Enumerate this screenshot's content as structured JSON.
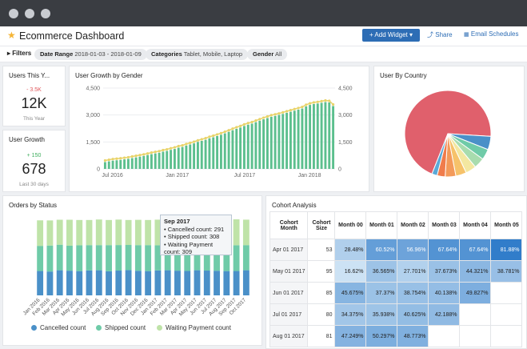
{
  "header": {
    "title": "Ecommerce Dashboard",
    "add_widget": "+ Add Widget ▾",
    "share": "Share",
    "email": "Email Schedules"
  },
  "filters": {
    "label": "Filters",
    "date_key": "Date Range",
    "date_value": "2018-01-03 - 2018-01-09",
    "cat_key": "Categories",
    "cat_value": "Tablet, Mobile, Laptop",
    "gender_key": "Gender",
    "gender_value": "All"
  },
  "kpi_users": {
    "title": "Users This Y...",
    "delta": "- 3.5K",
    "value": "12K",
    "sub": "This Year",
    "delta_color": "#e0575b"
  },
  "kpi_growth": {
    "title": "User Growth",
    "delta": "+ 150",
    "value": "678",
    "sub": "Last 30 days",
    "delta_color": "#3fae5e"
  },
  "growth_panel": {
    "title": "User Growth by Gender"
  },
  "country_panel": {
    "title": "User By Country"
  },
  "status_panel": {
    "title": "Orders by Status",
    "tooltip_title": "Sep 2017",
    "tooltip_lines": [
      "Cancelled count: 291",
      "Shipped count: 308",
      "Waiting Payment count: 309"
    ],
    "legend": [
      "Cancelled count",
      "Shipped count",
      "Waiting Payment count"
    ]
  },
  "cohort_panel": {
    "title": "Cohort Analysis",
    "headers": [
      "Cohort Month",
      "Cohort Size",
      "Month 00",
      "Month 01",
      "Month 02",
      "Month 03",
      "Month 04",
      "Month 05"
    ],
    "rows": [
      {
        "month": "Apr 01 2017",
        "size": "53",
        "cells": [
          "28.48%",
          "60.52%",
          "56.96%",
          "67.64%",
          "67.64%",
          "81.88%"
        ]
      },
      {
        "month": "May 01 2017",
        "size": "95",
        "cells": [
          "16.62%",
          "36.565%",
          "27.701%",
          "37.673%",
          "44.321%",
          "38.781%"
        ]
      },
      {
        "month": "Jun 01 2017",
        "size": "85",
        "cells": [
          "45.675%",
          "37.37%",
          "38.754%",
          "40.138%",
          "49.827%",
          ""
        ]
      },
      {
        "month": "Jul 01 2017",
        "size": "80",
        "cells": [
          "34.375%",
          "35.938%",
          "40.625%",
          "42.188%",
          "",
          ""
        ]
      },
      {
        "month": "Aug 01 2017",
        "size": "81",
        "cells": [
          "47.249%",
          "50.297%",
          "48.773%",
          "",
          "",
          ""
        ]
      }
    ]
  },
  "colors": {
    "accent": "#2d6db5",
    "cancelled": "#4a90c8",
    "shipped": "#6fcba8",
    "waiting": "#bfe3a8",
    "growth_bar": "#5cbf8e",
    "growth_line": "#e8d36a",
    "pie_main": "#e0606c"
  },
  "chart_data": [
    {
      "type": "bar",
      "title": "User Growth by Gender",
      "x_ticks": [
        "Jul 2016",
        "Jan 2017",
        "Jul 2017",
        "Jan 2018"
      ],
      "y_ticks": [
        "0",
        "1,500",
        "3,000",
        "4,500"
      ],
      "ylim": [
        0,
        4500
      ],
      "series": [
        {
          "values": [
            380,
            420,
            460,
            480,
            500,
            530,
            560,
            600,
            640,
            680,
            720,
            770,
            820,
            860,
            900,
            960,
            1000,
            1060,
            1110,
            1180,
            1220,
            1300,
            1360,
            1420,
            1500,
            1560,
            1620,
            1700,
            1760,
            1830,
            1900,
            1980,
            2060,
            2150,
            2230,
            2300,
            2390,
            2460,
            2520,
            2600,
            2680,
            2760,
            2830,
            2900,
            2950,
            3000,
            3060,
            3120,
            3180,
            3240,
            3300,
            3360,
            3480,
            3560,
            3610,
            3640,
            3680,
            3720,
            3700,
            3500
          ]
        }
      ]
    },
    {
      "type": "pie",
      "title": "User By Country",
      "values": [
        70,
        5,
        4,
        4,
        4,
        4,
        4,
        3,
        2
      ],
      "colors": [
        "#e0606c",
        "#4a90c8",
        "#6fcba8",
        "#a8dcae",
        "#f3e7a0",
        "#f6c26a",
        "#f39a5a",
        "#f07c4c",
        "#5aa9d8"
      ]
    },
    {
      "type": "bar",
      "title": "Orders by Status",
      "categories": [
        "Jan 2016",
        "Feb 2016",
        "Mar 2016",
        "Apr 2016",
        "May 2016",
        "Jun 2016",
        "Jul 2016",
        "Aug 2016",
        "Sep 2016",
        "Oct 2016",
        "Nov 2016",
        "Dec 2016",
        "Jan 2017",
        "Feb 2017",
        "Mar 2017",
        "Apr 2017",
        "May 2017",
        "Jun 2017",
        "Jul 2017",
        "Aug 2017",
        "Sep 2017",
        "Oct 2017"
      ],
      "x_ticks": [
        "Jan 2016",
        "Feb 2016",
        "Mar 2016",
        "Apr 2016",
        "May 2016",
        "Jun 2016",
        "Jul 2016",
        "Aug 2016",
        "Sep 2016",
        "Oct 2016",
        "Nov 2016",
        "Dec 2016",
        "Jan 2017",
        "Feb 2017",
        "Mar 2017",
        "Apr 2017",
        "May 2017",
        "Jun 2017",
        "Jul 2017",
        "Aug 2017",
        "Sep 2017",
        "Oct 2017"
      ],
      "series": [
        {
          "name": "Cancelled count",
          "values": [
            291,
            285,
            300,
            295,
            290,
            298,
            300,
            288,
            296,
            302,
            294,
            290,
            298,
            300,
            295,
            292,
            300,
            296,
            294,
            290,
            291,
            300
          ]
        },
        {
          "name": "Shipped count",
          "values": [
            300,
            310,
            305,
            298,
            308,
            302,
            300,
            312,
            305,
            300,
            306,
            310,
            300,
            304,
            302,
            308,
            300,
            306,
            302,
            310,
            308,
            300
          ]
        },
        {
          "name": "Waiting Payment count",
          "values": [
            305,
            300,
            298,
            310,
            302,
            300,
            306,
            300,
            304,
            298,
            302,
            300,
            306,
            302,
            304,
            300,
            306,
            300,
            308,
            302,
            309,
            304
          ]
        }
      ]
    }
  ]
}
